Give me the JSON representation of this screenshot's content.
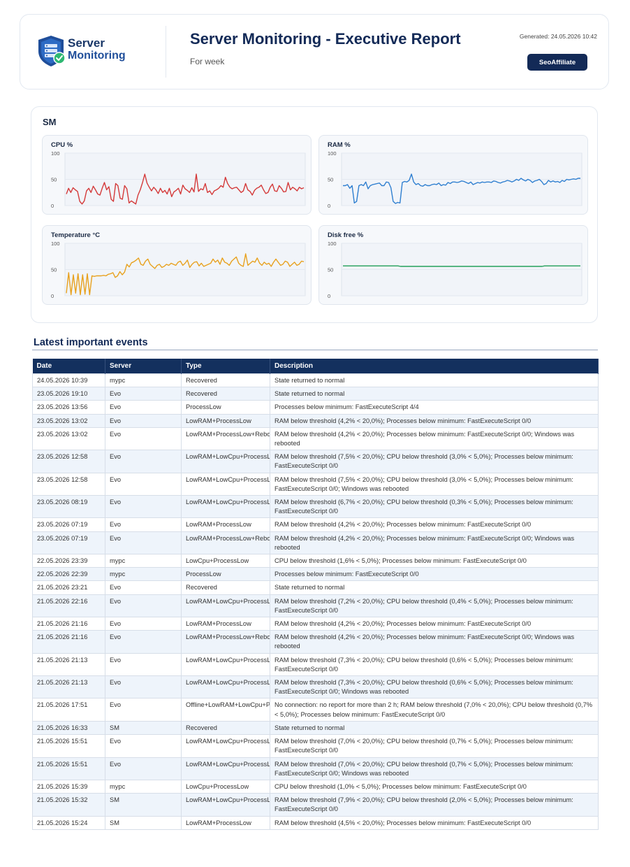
{
  "header": {
    "logo_line1": "Server",
    "logo_line2": "Monitoring",
    "title": "Server Monitoring - Executive Report",
    "subtitle": "For week",
    "generated": "Generated: 24.05.2026 10:42",
    "brand_button": "SeoAffiliate",
    "colors": {
      "navy": "#132a57",
      "shield": "#1f4e9a",
      "check": "#2eb872"
    }
  },
  "server": {
    "name": "SM",
    "chart_data": [
      {
        "type": "line",
        "title": "CPU %",
        "ylim": [
          0,
          100
        ],
        "yticks": [
          "0",
          "50",
          "100"
        ],
        "color": "#d43a3a",
        "values": [
          22,
          33,
          25,
          34,
          30,
          27,
          8,
          3,
          9,
          28,
          33,
          25,
          37,
          30,
          22,
          20,
          33,
          44,
          30,
          36,
          12,
          8,
          42,
          38,
          14,
          12,
          38,
          32,
          5,
          9,
          6,
          3,
          20,
          30,
          44,
          60,
          43,
          35,
          28,
          35,
          30,
          23,
          33,
          25,
          29,
          22,
          33,
          17,
          26,
          29,
          33,
          22,
          39,
          32,
          29,
          25,
          34,
          26,
          60,
          27,
          32,
          30,
          42,
          25,
          28,
          21,
          28,
          30,
          33,
          38,
          35,
          54,
          42,
          35,
          32,
          34,
          35,
          30,
          25,
          28,
          42,
          30,
          27,
          20,
          29,
          33,
          35,
          39,
          30,
          23,
          25,
          35,
          41,
          28,
          27,
          38,
          33,
          26,
          27,
          44,
          30,
          35,
          32,
          28,
          35,
          32,
          34
        ]
      },
      {
        "type": "line",
        "title": "RAM %",
        "ylim": [
          0,
          100
        ],
        "yticks": [
          "0",
          "50",
          "100"
        ],
        "color": "#2f7fd0",
        "values": [
          38,
          38,
          40,
          33,
          38,
          5,
          8,
          38,
          40,
          38,
          45,
          32,
          38,
          40,
          41,
          42,
          43,
          38,
          38,
          45,
          44,
          34,
          8,
          4,
          6,
          5,
          44,
          46,
          45,
          48,
          60,
          45,
          40,
          42,
          38,
          37,
          40,
          38,
          38,
          40,
          41,
          40,
          43,
          38,
          40,
          39,
          44,
          42,
          45,
          45,
          44,
          45,
          47,
          46,
          44,
          42,
          45,
          40,
          42,
          44,
          43,
          45,
          44,
          45,
          45,
          44,
          47,
          46,
          44,
          43,
          45,
          46,
          48,
          47,
          45,
          47,
          50,
          48,
          52,
          49,
          47,
          50,
          48,
          44,
          47,
          48,
          50,
          46,
          40,
          42,
          48,
          45,
          47,
          45,
          46,
          44,
          48,
          46,
          50,
          49,
          50,
          51,
          50,
          52,
          52
        ]
      },
      {
        "type": "line",
        "title": "Temperature °C",
        "ylim": [
          0,
          100
        ],
        "yticks": [
          "0",
          "50",
          "100"
        ],
        "color": "#e8a11e",
        "values": [
          5,
          44,
          2,
          40,
          5,
          42,
          2,
          40,
          3,
          42,
          2,
          38,
          37,
          38,
          38,
          38,
          39,
          38,
          41,
          42,
          44,
          35,
          38,
          46,
          40,
          45,
          60,
          55,
          63,
          65,
          68,
          72,
          60,
          58,
          66,
          70,
          60,
          56,
          52,
          58,
          60,
          54,
          56,
          60,
          58,
          62,
          60,
          58,
          64,
          66,
          58,
          62,
          68,
          54,
          60,
          64,
          65,
          57,
          62,
          56,
          58,
          60,
          62,
          70,
          64,
          68,
          60,
          72,
          64,
          62,
          58,
          66,
          70,
          74,
          62,
          58,
          56,
          80,
          58,
          62,
          66,
          64,
          72,
          62,
          58,
          64,
          60,
          62,
          56,
          64,
          70,
          64,
          58,
          60,
          66,
          64,
          56,
          60,
          64,
          58,
          60,
          66,
          65
        ]
      },
      {
        "type": "line",
        "title": "Disk free %",
        "ylim": [
          0,
          100
        ],
        "yticks": [
          "0",
          "50",
          "100"
        ],
        "color": "#22a05a",
        "values": [
          57,
          57,
          57,
          57,
          57,
          57,
          57,
          57,
          57,
          57,
          57,
          57,
          57,
          57,
          57,
          57,
          57,
          57,
          57,
          57,
          57,
          57,
          57,
          57,
          56,
          56,
          56,
          56,
          56,
          56,
          56,
          56,
          56,
          56,
          56,
          56,
          56,
          56,
          56,
          56,
          56,
          56,
          56,
          56,
          56,
          56,
          56,
          56,
          56,
          56,
          56,
          56,
          56,
          56,
          56,
          56,
          56,
          56,
          56,
          56,
          56,
          56,
          56,
          56,
          56,
          56,
          56,
          56,
          56,
          56,
          56,
          56,
          56,
          56,
          56,
          56,
          56,
          56,
          56,
          56,
          56,
          56,
          56,
          56,
          57,
          57,
          57,
          57,
          57,
          57,
          57,
          57,
          57,
          57,
          57,
          57,
          57,
          57,
          57,
          57
        ]
      }
    ]
  },
  "events": {
    "title": "Latest important events",
    "columns": [
      "Date",
      "Server",
      "Type",
      "Description"
    ],
    "rows": [
      [
        "24.05.2026 10:39",
        "mypc",
        "Recovered",
        "State returned to normal"
      ],
      [
        "23.05.2026 19:10",
        "Evo",
        "Recovered",
        "State returned to normal"
      ],
      [
        "23.05.2026 13:56",
        "Evo",
        "ProcessLow",
        "Processes below minimum: FastExecuteScript 4/4"
      ],
      [
        "23.05.2026 13:02",
        "Evo",
        "LowRAM+ProcessLow",
        "RAM below threshold (4,2% < 20,0%); Processes below minimum: FastExecuteScript 0/0"
      ],
      [
        "23.05.2026 13:02",
        "Evo",
        "LowRAM+ProcessLow+Reboot",
        "RAM below threshold (4,2% < 20,0%); Processes below minimum: FastExecuteScript 0/0; Windows was rebooted"
      ],
      [
        "23.05.2026 12:58",
        "Evo",
        "LowRAM+LowCpu+ProcessLow",
        "RAM below threshold (7,5% < 20,0%); CPU below threshold (3,0% < 5,0%); Processes below minimum: FastExecuteScript 0/0"
      ],
      [
        "23.05.2026 12:58",
        "Evo",
        "LowRAM+LowCpu+ProcessLow+…",
        "RAM below threshold (7,5% < 20,0%); CPU below threshold (3,0% < 5,0%); Processes below minimum: FastExecuteScript 0/0; Windows was rebooted"
      ],
      [
        "23.05.2026 08:19",
        "Evo",
        "LowRAM+LowCpu+ProcessLow",
        "RAM below threshold (6,7% < 20,0%); CPU below threshold (0,3% < 5,0%); Processes below minimum: FastExecuteScript 0/0"
      ],
      [
        "23.05.2026 07:19",
        "Evo",
        "LowRAM+ProcessLow",
        "RAM below threshold (4,2% < 20,0%); Processes below minimum: FastExecuteScript 0/0"
      ],
      [
        "23.05.2026 07:19",
        "Evo",
        "LowRAM+ProcessLow+Reboot",
        "RAM below threshold (4,2% < 20,0%); Processes below minimum: FastExecuteScript 0/0; Windows was rebooted"
      ],
      [
        "22.05.2026 23:39",
        "mypc",
        "LowCpu+ProcessLow",
        "CPU below threshold (1,6% < 5,0%); Processes below minimum: FastExecuteScript 0/0"
      ],
      [
        "22.05.2026 22:39",
        "mypc",
        "ProcessLow",
        "Processes below minimum: FastExecuteScript 0/0"
      ],
      [
        "21.05.2026 23:21",
        "Evo",
        "Recovered",
        "State returned to normal"
      ],
      [
        "21.05.2026 22:16",
        "Evo",
        "LowRAM+LowCpu+ProcessLow",
        "RAM below threshold (7,2% < 20,0%); CPU below threshold (0,4% < 5,0%); Processes below minimum: FastExecuteScript 0/0"
      ],
      [
        "21.05.2026 21:16",
        "Evo",
        "LowRAM+ProcessLow",
        "RAM below threshold (4,2% < 20,0%); Processes below minimum: FastExecuteScript 0/0"
      ],
      [
        "21.05.2026 21:16",
        "Evo",
        "LowRAM+ProcessLow+Reboot",
        "RAM below threshold (4,2% < 20,0%); Processes below minimum: FastExecuteScript 0/0; Windows was rebooted"
      ],
      [
        "21.05.2026 21:13",
        "Evo",
        "LowRAM+LowCpu+ProcessLow",
        "RAM below threshold (7,3% < 20,0%); CPU below threshold (0,6% < 5,0%); Processes below minimum: FastExecuteScript 0/0"
      ],
      [
        "21.05.2026 21:13",
        "Evo",
        "LowRAM+LowCpu+ProcessLow+…",
        "RAM below threshold (7,3% < 20,0%); CPU below threshold (0,6% < 5,0%); Processes below minimum: FastExecuteScript 0/0; Windows was rebooted"
      ],
      [
        "21.05.2026 17:51",
        "Evo",
        "Offline+LowRAM+LowCpu+Pro…",
        "No connection: no report for more than 2 h; RAM below threshold (7,0% < 20,0%); CPU below threshold (0,7% < 5,0%); Processes below minimum: FastExecuteScript 0/0"
      ],
      [
        "21.05.2026 16:33",
        "SM",
        "Recovered",
        "State returned to normal"
      ],
      [
        "21.05.2026 15:51",
        "Evo",
        "LowRAM+LowCpu+ProcessLow",
        "RAM below threshold (7,0% < 20,0%); CPU below threshold (0,7% < 5,0%); Processes below minimum: FastExecuteScript 0/0"
      ],
      [
        "21.05.2026 15:51",
        "Evo",
        "LowRAM+LowCpu+ProcessLow+…",
        "RAM below threshold (7,0% < 20,0%); CPU below threshold (0,7% < 5,0%); Processes below minimum: FastExecuteScript 0/0; Windows was rebooted"
      ],
      [
        "21.05.2026 15:39",
        "mypc",
        "LowCpu+ProcessLow",
        "CPU below threshold (1,0% < 5,0%); Processes below minimum: FastExecuteScript 0/0"
      ],
      [
        "21.05.2026 15:32",
        "SM",
        "LowRAM+LowCpu+ProcessLow",
        "RAM below threshold (7,9% < 20,0%); CPU below threshold (2,0% < 5,0%); Processes below minimum: FastExecuteScript 0/0"
      ],
      [
        "21.05.2026 15:24",
        "SM",
        "LowRAM+ProcessLow",
        "RAM below threshold (4,5% < 20,0%); Processes below minimum: FastExecuteScript 0/0"
      ]
    ]
  }
}
